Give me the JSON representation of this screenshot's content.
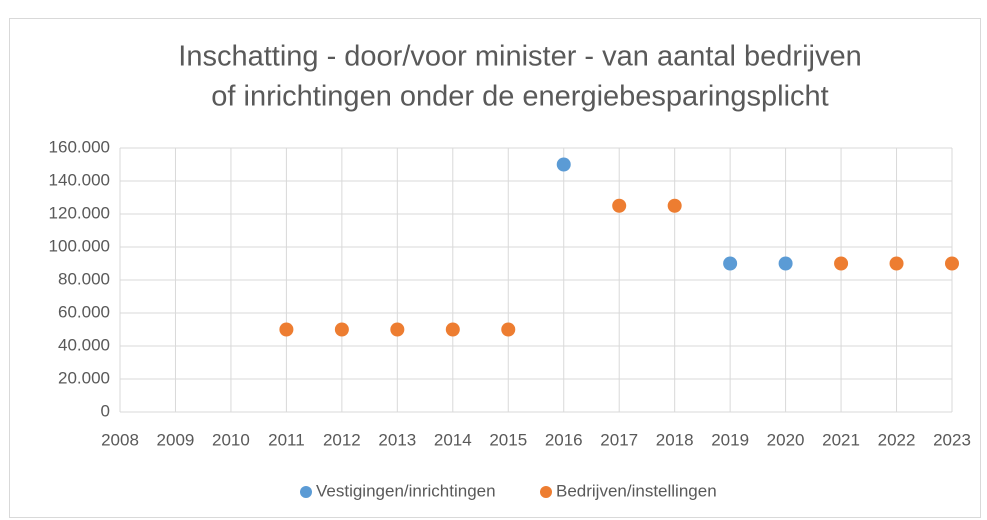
{
  "chart_data": {
    "type": "scatter",
    "title": [
      "Inschatting - door/voor minister - van aantal bedrijven",
      "of inrichtingen onder de energiebesparingsplicht"
    ],
    "series": [
      {
        "name": "Vestigingen/inrichtingen",
        "color": "#5b9bd5",
        "x": [
          2016,
          2019,
          2020
        ],
        "values": [
          150000,
          90000,
          90000
        ]
      },
      {
        "name": "Bedrijven/instellingen",
        "color": "#ed7d31",
        "x": [
          2011,
          2012,
          2013,
          2014,
          2015,
          2017,
          2018,
          2021,
          2022,
          2023
        ],
        "values": [
          50000,
          50000,
          50000,
          50000,
          50000,
          125000,
          125000,
          90000,
          90000,
          90000
        ]
      }
    ],
    "xlim": [
      2008,
      2023
    ],
    "xticks": [
      2008,
      2009,
      2010,
      2011,
      2012,
      2013,
      2014,
      2015,
      2016,
      2017,
      2018,
      2019,
      2020,
      2021,
      2022,
      2023
    ],
    "ylim": [
      0,
      160000
    ],
    "yticks": [
      0,
      {
        "value": 20000,
        "label": "20.000"
      },
      {
        "value": 40000,
        "label": "40.000"
      },
      {
        "value": 60000,
        "label": "60.000"
      },
      {
        "value": 80000,
        "label": "80.000"
      },
      {
        "value": 100000,
        "label": "100.000"
      },
      {
        "value": 120000,
        "label": "120.000"
      },
      {
        "value": 140000,
        "label": "140.000"
      },
      {
        "value": 160000,
        "label": "160.000"
      }
    ],
    "grid": true,
    "legend": "bottom"
  }
}
